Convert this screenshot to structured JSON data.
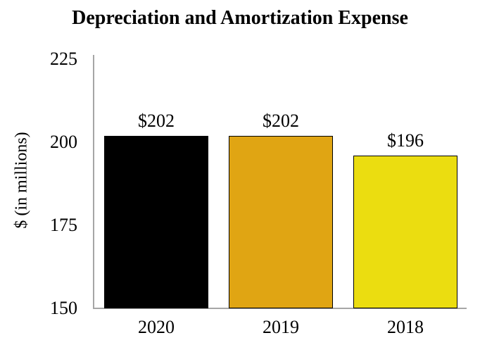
{
  "chart_data": {
    "type": "bar",
    "title": "Depreciation and Amortization Expense",
    "categories": [
      "2020",
      "2019",
      "2018"
    ],
    "values": [
      202,
      202,
      196
    ],
    "value_labels": [
      "$202",
      "$202",
      "$196"
    ],
    "bar_colors": [
      "#000000",
      "#E0A513",
      "#EBDD10"
    ],
    "bar_border_color": "#000000",
    "xlabel": "",
    "ylabel": "$ (in millions)",
    "ylim": [
      150,
      225
    ],
    "yticks": [
      225,
      200,
      175,
      150
    ],
    "grid": false,
    "legend": "none",
    "axis_color": "#A6A6A6"
  }
}
